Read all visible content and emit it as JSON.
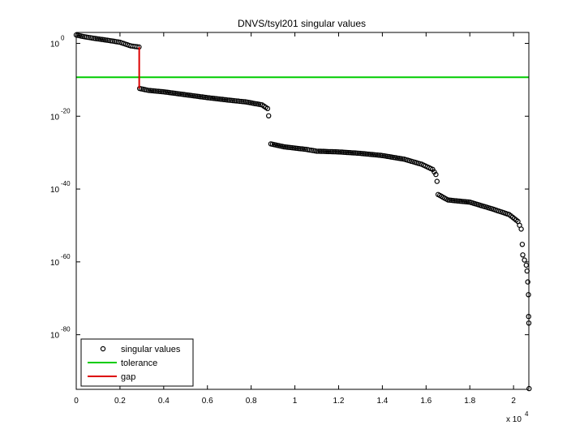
{
  "chart_data": {
    "type": "scatter",
    "title": "DNVS/tsyl201 singular values",
    "xlabel": "",
    "ylabel": "",
    "x_multiplier_label": {
      "base": "x 10",
      "exp": "4"
    },
    "xlim": [
      0,
      20700
    ],
    "ylim_log10": [
      -95,
      3
    ],
    "x_ticks": [
      {
        "v": 0,
        "label": "0"
      },
      {
        "v": 2000,
        "label": "0.2"
      },
      {
        "v": 4000,
        "label": "0.4"
      },
      {
        "v": 6000,
        "label": "0.6"
      },
      {
        "v": 8000,
        "label": "0.8"
      },
      {
        "v": 10000,
        "label": "1"
      },
      {
        "v": 12000,
        "label": "1.2"
      },
      {
        "v": 14000,
        "label": "1.4"
      },
      {
        "v": 16000,
        "label": "1.6"
      },
      {
        "v": 18000,
        "label": "1.8"
      },
      {
        "v": 20000,
        "label": "2"
      }
    ],
    "y_ticks": [
      {
        "exp": 0,
        "base": "10",
        "sup": "0"
      },
      {
        "exp": -20,
        "base": "10",
        "sup": "-20"
      },
      {
        "exp": -40,
        "base": "10",
        "sup": "-40"
      },
      {
        "exp": -60,
        "base": "10",
        "sup": "-60"
      },
      {
        "exp": -80,
        "base": "10",
        "sup": "-80"
      }
    ],
    "series": [
      {
        "name": "singular values",
        "color": "#000000",
        "marker": "circle",
        "points_log10": [
          [
            0,
            2.3
          ],
          [
            300,
            1.9
          ],
          [
            800,
            1.4
          ],
          [
            1500,
            0.8
          ],
          [
            2000,
            0.3
          ],
          [
            2500,
            -0.7
          ],
          [
            2870,
            -1.0
          ],
          [
            2900,
            -12.4
          ],
          [
            3300,
            -12.9
          ],
          [
            4000,
            -13.3
          ],
          [
            5000,
            -14.1
          ],
          [
            6000,
            -14.9
          ],
          [
            7000,
            -15.6
          ],
          [
            7800,
            -16.1
          ],
          [
            8500,
            -16.9
          ],
          [
            8750,
            -17.9
          ],
          [
            8800,
            -19.9
          ],
          [
            8900,
            -27.6
          ],
          [
            9500,
            -28.4
          ],
          [
            10500,
            -29.1
          ],
          [
            11000,
            -29.6
          ],
          [
            12000,
            -29.8
          ],
          [
            13000,
            -30.2
          ],
          [
            14000,
            -30.8
          ],
          [
            15000,
            -31.8
          ],
          [
            15800,
            -33.2
          ],
          [
            16300,
            -34.6
          ],
          [
            16450,
            -36.0
          ],
          [
            16500,
            -37.9
          ],
          [
            16550,
            -41.5
          ],
          [
            17000,
            -43.0
          ],
          [
            18000,
            -43.6
          ],
          [
            19000,
            -45.4
          ],
          [
            19800,
            -47.0
          ],
          [
            20200,
            -48.9
          ],
          [
            20350,
            -51.0
          ],
          [
            20400,
            -55.2
          ],
          [
            20420,
            -58.1
          ],
          [
            20500,
            -59.5
          ],
          [
            20580,
            -60.9
          ],
          [
            20620,
            -62.5
          ],
          [
            20650,
            -65.5
          ],
          [
            20680,
            -69.0
          ],
          [
            20690,
            -75.0
          ],
          [
            20700,
            -76.8
          ],
          [
            20710,
            -94.8
          ]
        ]
      },
      {
        "name": "tolerance",
        "color": "#00cc00",
        "y_log10": -9.3
      },
      {
        "name": "gap",
        "color": "#dd0000",
        "x": 2880,
        "y_log10_range": [
          -1.0,
          -12.4
        ]
      }
    ],
    "legend": {
      "placement": "bottom-left",
      "entries": [
        {
          "label": "singular values",
          "style": "marker",
          "color": "#000000"
        },
        {
          "label": "tolerance",
          "style": "line",
          "color": "#00cc00"
        },
        {
          "label": "gap",
          "style": "line",
          "color": "#dd0000"
        }
      ]
    }
  }
}
